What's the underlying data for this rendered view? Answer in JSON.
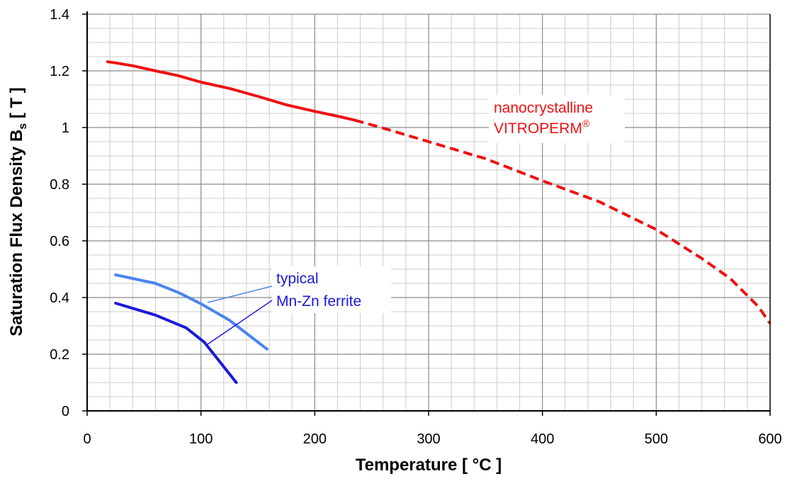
{
  "chart_data": {
    "type": "line",
    "xlabel": "Temperature [ °C ]",
    "ylabel": "Saturation Flux Density  B",
    "ylabel_sub": "s",
    "ylabel_unit": " [ T ]",
    "xlim": [
      0,
      600
    ],
    "ylim": [
      0,
      1.4
    ],
    "x_ticks": [
      "0",
      "100",
      "200",
      "300",
      "400",
      "500",
      "600"
    ],
    "y_ticks": [
      "0",
      "0.2",
      "0.4",
      "0.6",
      "0.8",
      "1",
      "1.2",
      "1.4"
    ],
    "grid": true,
    "series": [
      {
        "color": "#ee1111",
        "solid": [
          [
            18,
            1.232
          ],
          [
            25,
            1.228
          ],
          [
            40,
            1.218
          ],
          [
            60,
            1.2
          ],
          [
            80,
            1.183
          ],
          [
            100,
            1.16
          ],
          [
            125,
            1.138
          ],
          [
            150,
            1.11
          ],
          [
            175,
            1.08
          ],
          [
            200,
            1.057
          ],
          [
            220,
            1.04
          ],
          [
            235,
            1.026
          ]
        ],
        "dashed": [
          [
            235,
            1.026
          ],
          [
            260,
            0.998
          ],
          [
            300,
            0.95
          ],
          [
            350,
            0.89
          ],
          [
            400,
            0.812
          ],
          [
            450,
            0.738
          ],
          [
            500,
            0.64
          ],
          [
            540,
            0.538
          ],
          [
            565,
            0.467
          ],
          [
            590,
            0.367
          ],
          [
            600,
            0.308
          ]
        ]
      },
      {
        "color": "#4a84f0",
        "solid": [
          [
            25,
            0.48
          ],
          [
            60,
            0.45
          ],
          [
            80,
            0.418
          ],
          [
            100,
            0.378
          ],
          [
            125,
            0.32
          ],
          [
            158,
            0.218
          ]
        ]
      },
      {
        "color": "#1a1ad8",
        "solid": [
          [
            25,
            0.38
          ],
          [
            60,
            0.338
          ],
          [
            87,
            0.293
          ],
          [
            103,
            0.242
          ],
          [
            131,
            0.1
          ]
        ]
      }
    ],
    "annotations": {
      "vitroperm_line1": "nanocrystalline",
      "vitroperm_line2": "VITROPERM",
      "vitroperm_mark": "®",
      "ferrite_line1": "typical",
      "ferrite_line2": "Mn-Zn ferrite"
    }
  }
}
